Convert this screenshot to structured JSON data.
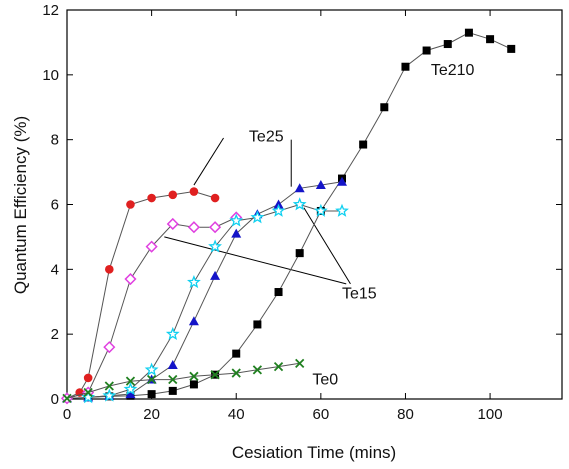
{
  "chart_data": {
    "type": "scatter",
    "title": "",
    "xlabel": "Cesiation Time (mins)",
    "ylabel": "Quantum Efficiency (%)",
    "xlim": [
      0,
      117
    ],
    "ylim": [
      0,
      12
    ],
    "xticks": [
      0,
      20,
      40,
      60,
      80,
      100
    ],
    "yticks": [
      0,
      2,
      4,
      6,
      8,
      10,
      12
    ],
    "grid": false,
    "legend": "none",
    "series": [
      {
        "label_key": "Te210",
        "marker": "square",
        "color": "#000000",
        "x": [
          5,
          10,
          15,
          20,
          25,
          30,
          35,
          40,
          45,
          50,
          55,
          60,
          65,
          70,
          75,
          80,
          85,
          90,
          95,
          100,
          105
        ],
        "y": [
          0.05,
          0.08,
          0.1,
          0.15,
          0.25,
          0.45,
          0.75,
          1.4,
          2.3,
          3.3,
          4.5,
          5.8,
          6.8,
          7.85,
          9.0,
          10.25,
          10.75,
          10.95,
          11.3,
          11.1,
          10.8
        ]
      },
      {
        "label_key": "Te25",
        "marker": "circle",
        "color": "#e02020",
        "x": [
          0,
          3,
          5,
          10,
          15,
          20,
          25,
          30,
          35
        ],
        "y": [
          0.02,
          0.2,
          0.65,
          4.0,
          6.0,
          6.2,
          6.3,
          6.4,
          6.2
        ]
      },
      {
        "label_key": "Te25",
        "marker": "triangle",
        "color": "#1414c8",
        "x": [
          0,
          5,
          10,
          15,
          20,
          25,
          30,
          35,
          40,
          45,
          50,
          55,
          60,
          65
        ],
        "y": [
          0.02,
          0.05,
          0.1,
          0.15,
          0.6,
          1.05,
          2.4,
          3.8,
          5.1,
          5.7,
          6.0,
          6.5,
          6.6,
          6.7
        ]
      },
      {
        "label_key": "Te15",
        "marker": "diamond",
        "color": "#e040e0",
        "x": [
          0,
          5,
          10,
          15,
          20,
          25,
          30,
          35,
          40
        ],
        "y": [
          0.02,
          0.2,
          1.6,
          3.7,
          4.7,
          5.4,
          5.3,
          5.3,
          5.6
        ]
      },
      {
        "label_key": "Te15",
        "marker": "star",
        "color": "#10d0f0",
        "x": [
          5,
          10,
          15,
          20,
          25,
          30,
          35,
          40,
          45,
          50,
          55,
          60,
          65
        ],
        "y": [
          0.05,
          0.1,
          0.3,
          0.9,
          2.0,
          3.6,
          4.7,
          5.5,
          5.6,
          5.8,
          6.0,
          5.8,
          5.8
        ]
      },
      {
        "label_key": "Te0",
        "marker": "x",
        "color": "#208020",
        "x": [
          0,
          5,
          10,
          15,
          20,
          25,
          30,
          35,
          40,
          45,
          50,
          55
        ],
        "y": [
          0.02,
          0.2,
          0.4,
          0.55,
          0.6,
          0.6,
          0.7,
          0.75,
          0.8,
          0.9,
          1.0,
          1.1
        ]
      }
    ],
    "annotations": [
      {
        "text": "Te210",
        "at": [
          86,
          10.0
        ],
        "pointers": []
      },
      {
        "text": "Te25",
        "at": [
          43,
          7.95
        ],
        "pointers": [
          [
            37,
            8.05,
            30,
            6.6
          ],
          [
            53,
            8.0,
            53,
            6.55
          ]
        ]
      },
      {
        "text": "Te15",
        "at": [
          65,
          3.1
        ],
        "pointers": [
          [
            66,
            3.55,
            23,
            5.0
          ],
          [
            67,
            3.55,
            56,
            5.9
          ]
        ]
      },
      {
        "text": "Te0",
        "at": [
          58,
          0.45
        ],
        "pointers": []
      }
    ]
  }
}
